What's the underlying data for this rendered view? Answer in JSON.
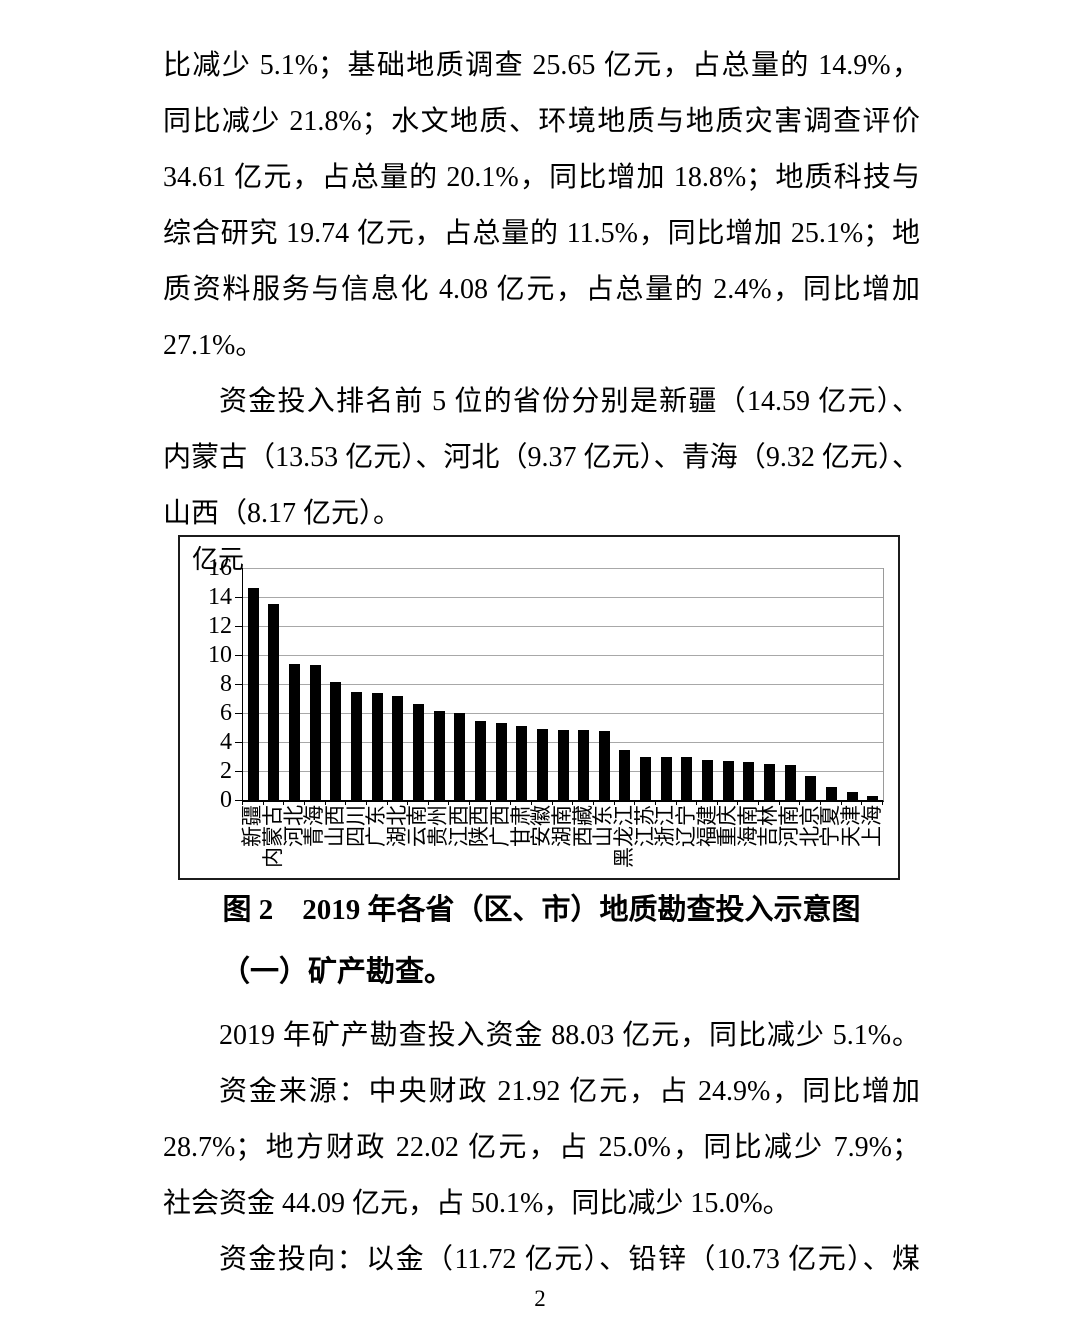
{
  "document": {
    "p1_lines": [
      "比减少 5.1%；基础地质调查 25.65 亿元，占总量的 14.9%，",
      "同比减少 21.8%；水文地质、环境地质与地质灾害调查评价",
      "34.61 亿元，占总量的 20.1%，同比增加 18.8%；地质科技与",
      "综合研究 19.74 亿元，占总量的 11.5%，同比增加 25.1%；地",
      "质资料服务与信息化 4.08 亿元，占总量的 2.4%，同比增加",
      "27.1%。"
    ],
    "p2_lines": [
      "资金投入排名前 5 位的省份分别是新疆（14.59 亿元）、",
      "内蒙古（13.53 亿元）、河北（9.37 亿元）、青海（9.32 亿元）、",
      "山西（8.17 亿元）。"
    ],
    "figure_caption": "图 2　2019 年各省（区、市）地质勘查投入示意图",
    "section_heading": "（一）矿产勘查。",
    "p3_lines": [
      "2019 年矿产勘查投入资金 88.03 亿元，同比减少 5.1%。"
    ],
    "p4_lines": [
      "资金来源：中央财政 21.92 亿元，占 24.9%，同比增加",
      "28.7%；地方财政 22.02 亿元，占 25.0%，同比减少 7.9%；",
      "社会资金 44.09 亿元，占 50.1%，同比减少 15.0%。"
    ],
    "p5_lines": [
      "资金投向：以金（11.72 亿元）、铅锌（10.73 亿元）、煤"
    ],
    "page_number": "2"
  },
  "chart_data": {
    "type": "bar",
    "title": "",
    "unit_label": "亿元",
    "categories": [
      "新疆",
      "内蒙古",
      "河北",
      "青海",
      "山西",
      "四川",
      "广东",
      "湖北",
      "云南",
      "贵州",
      "江西",
      "陕西",
      "广西",
      "甘肃",
      "安徽",
      "湖南",
      "西藏",
      "山东",
      "黑龙江",
      "江苏",
      "浙江",
      "辽宁",
      "福建",
      "重庆",
      "海南",
      "吉林",
      "河南",
      "北京",
      "宁夏",
      "天津",
      "上海"
    ],
    "values": [
      14.59,
      13.53,
      9.37,
      9.32,
      8.17,
      7.42,
      7.38,
      7.19,
      6.63,
      6.17,
      6.03,
      5.45,
      5.29,
      5.08,
      4.88,
      4.82,
      4.8,
      4.73,
      3.48,
      2.97,
      2.96,
      2.95,
      2.79,
      2.67,
      2.6,
      2.51,
      2.41,
      1.66,
      0.9,
      0.55,
      0.28
    ],
    "y_ticks": [
      0,
      2,
      4,
      6,
      8,
      10,
      12,
      14,
      16
    ],
    "ylim": [
      0,
      16
    ],
    "xlabel": "",
    "ylabel": "亿元",
    "grid": true,
    "legend_position": "none",
    "bar_color": "#000000",
    "gridline_color": "#a8a8a8"
  }
}
